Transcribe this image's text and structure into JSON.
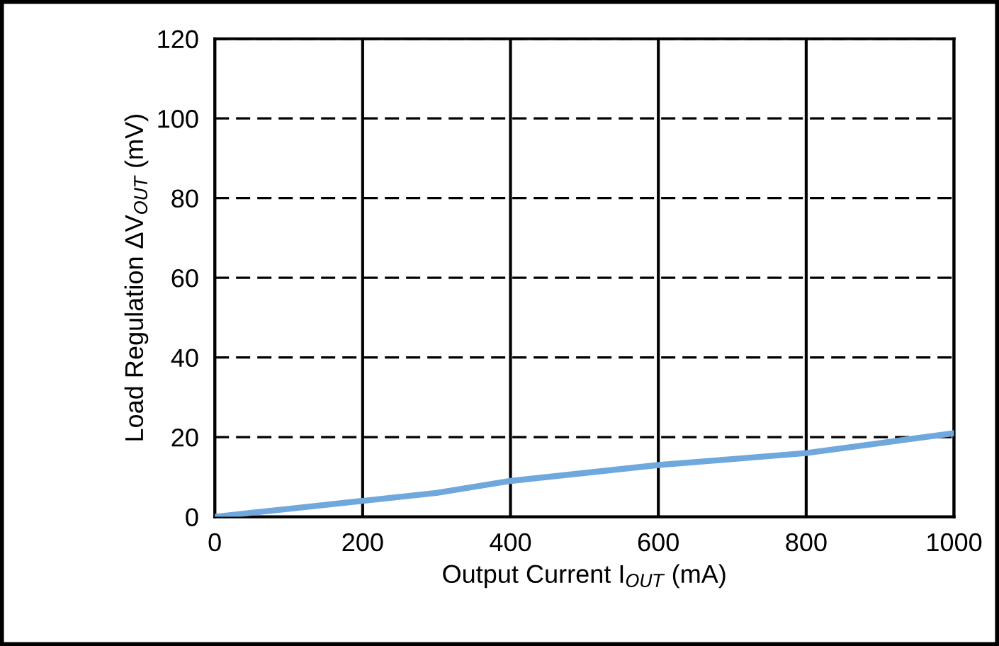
{
  "chart_data": {
    "type": "line",
    "xlabel": "Output Current I$_{OUT}$ (mA)",
    "ylabel": "Load Regulation ΔV$_{OUT}$ (mV)",
    "x": [
      0,
      50,
      100,
      200,
      300,
      400,
      500,
      600,
      700,
      800,
      900,
      1000
    ],
    "series": [
      {
        "color": "#6fa8dc",
        "values": [
          0,
          1,
          2,
          4,
          6,
          9,
          11,
          13,
          14.5,
          16,
          18.5,
          21
        ]
      }
    ],
    "xlim": [
      0,
      1000
    ],
    "ylim": [
      0,
      120
    ],
    "xticks": [
      0,
      200,
      400,
      600,
      800,
      1000
    ],
    "yticks": [
      0,
      20,
      40,
      60,
      80,
      100,
      120
    ],
    "grid": true,
    "marker": "none",
    "line_style": "solid"
  }
}
